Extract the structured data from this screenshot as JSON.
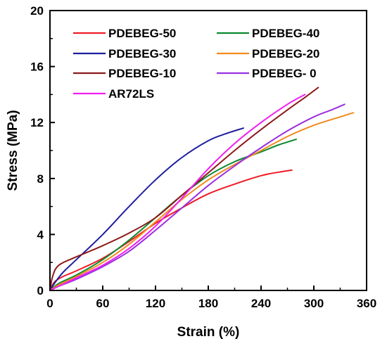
{
  "chart_data": {
    "type": "line",
    "xlabel": "Strain (%)",
    "ylabel": "Stress (MPa)",
    "xlim": [
      0,
      360
    ],
    "ylim": [
      0,
      20
    ],
    "xticks": [
      "0",
      "60",
      "120",
      "180",
      "240",
      "300",
      "360"
    ],
    "yticks": [
      "0",
      "4",
      "8",
      "12",
      "16",
      "20"
    ],
    "grid": false,
    "legend_position": "top-left",
    "series": [
      {
        "name": "PDEBEG-50",
        "color": "#ee1c25",
        "x": [
          0,
          5,
          15,
          30,
          60,
          90,
          120,
          150,
          180,
          210,
          240,
          260,
          275
        ],
        "y": [
          0,
          0.6,
          1.0,
          1.4,
          2.3,
          3.5,
          4.8,
          5.9,
          6.9,
          7.6,
          8.2,
          8.45,
          8.6
        ]
      },
      {
        "name": "PDEBEG-40",
        "color": "#0a8a2e",
        "x": [
          0,
          10,
          30,
          60,
          90,
          120,
          150,
          180,
          210,
          240,
          260,
          280
        ],
        "y": [
          0,
          0.5,
          1.1,
          2.2,
          3.6,
          5.2,
          6.8,
          8.2,
          9.2,
          9.9,
          10.4,
          10.8
        ]
      },
      {
        "name": "PDEBEG-30",
        "color": "#1e1e9e",
        "x": [
          0,
          5,
          15,
          30,
          60,
          90,
          120,
          150,
          180,
          200,
          220
        ],
        "y": [
          0,
          0.5,
          1.3,
          2.2,
          4.0,
          6.0,
          7.9,
          9.5,
          10.7,
          11.2,
          11.6
        ]
      },
      {
        "name": "PDEBEG-20",
        "color": "#f28a1e",
        "x": [
          0,
          10,
          30,
          60,
          90,
          120,
          150,
          180,
          210,
          240,
          270,
          300,
          330,
          345
        ],
        "y": [
          0,
          0.4,
          1.0,
          2.0,
          3.3,
          4.9,
          6.5,
          7.9,
          9.0,
          10.0,
          11.0,
          11.8,
          12.4,
          12.7
        ]
      },
      {
        "name": "PDEBEG-10",
        "color": "#8b1a1a",
        "x": [
          0,
          3,
          10,
          30,
          60,
          90,
          120,
          150,
          180,
          210,
          240,
          270,
          290,
          305
        ],
        "y": [
          0,
          1.0,
          1.8,
          2.4,
          3.2,
          4.1,
          5.2,
          6.8,
          8.4,
          10.0,
          11.5,
          12.9,
          13.8,
          14.5
        ]
      },
      {
        "name": "PDEBEG- 0",
        "color": "#9b30e0",
        "x": [
          0,
          10,
          30,
          60,
          90,
          120,
          150,
          180,
          210,
          240,
          270,
          300,
          320,
          335
        ],
        "y": [
          0,
          0.3,
          0.8,
          1.7,
          2.8,
          4.3,
          5.9,
          7.5,
          8.9,
          10.2,
          11.4,
          12.4,
          12.9,
          13.3
        ]
      },
      {
        "name": "AR72LS",
        "color": "#f01ef0",
        "x": [
          0,
          10,
          30,
          60,
          90,
          120,
          150,
          180,
          210,
          240,
          270,
          290
        ],
        "y": [
          0,
          0.3,
          0.9,
          1.8,
          3.0,
          4.6,
          6.6,
          8.7,
          10.5,
          12.0,
          13.3,
          14.0
        ]
      }
    ]
  }
}
